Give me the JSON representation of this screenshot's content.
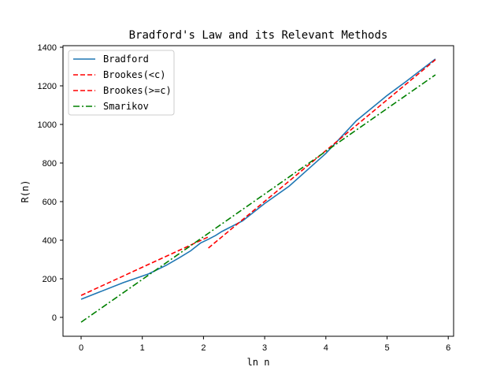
{
  "chart_data": {
    "type": "line",
    "title": "Bradford's Law and its Relevant Methods",
    "xlabel": "ln n",
    "ylabel": "R(n)",
    "xlim": [
      -0.3,
      6.1
    ],
    "ylim": [
      -95,
      1410
    ],
    "xticks": [
      0,
      1,
      2,
      3,
      4,
      5,
      6
    ],
    "yticks": [
      0,
      200,
      400,
      600,
      800,
      1000,
      1200,
      1400
    ],
    "grid": false,
    "legend_position": "upper left",
    "series": [
      {
        "name": "Bradford",
        "color": "#1f77b4",
        "style": "solid",
        "x": [
          0,
          0.69,
          1.1,
          1.39,
          1.61,
          1.79,
          1.95,
          2.08,
          2.2,
          2.3,
          2.64,
          3.0,
          3.4,
          4.0,
          4.5,
          5.0,
          5.3,
          5.79
        ],
        "y": [
          94,
          180,
          225,
          270,
          310,
          345,
          385,
          405,
          425,
          445,
          500,
          590,
          680,
          850,
          1020,
          1150,
          1220,
          1339
        ]
      },
      {
        "name": "Brookes(<c)",
        "color": "#ff0000",
        "style": "dashed",
        "x": [
          0,
          2.1
        ],
        "y": [
          114,
          420
        ]
      },
      {
        "name": "Brookes(>=c)",
        "color": "#ff0000",
        "style": "dashed",
        "x": [
          2.08,
          5.79
        ],
        "y": [
          359,
          1335
        ]
      },
      {
        "name": "Smarikov",
        "color": "#008000",
        "style": "dashdot",
        "x": [
          0,
          5.79
        ],
        "y": [
          -25,
          1257
        ]
      }
    ]
  }
}
